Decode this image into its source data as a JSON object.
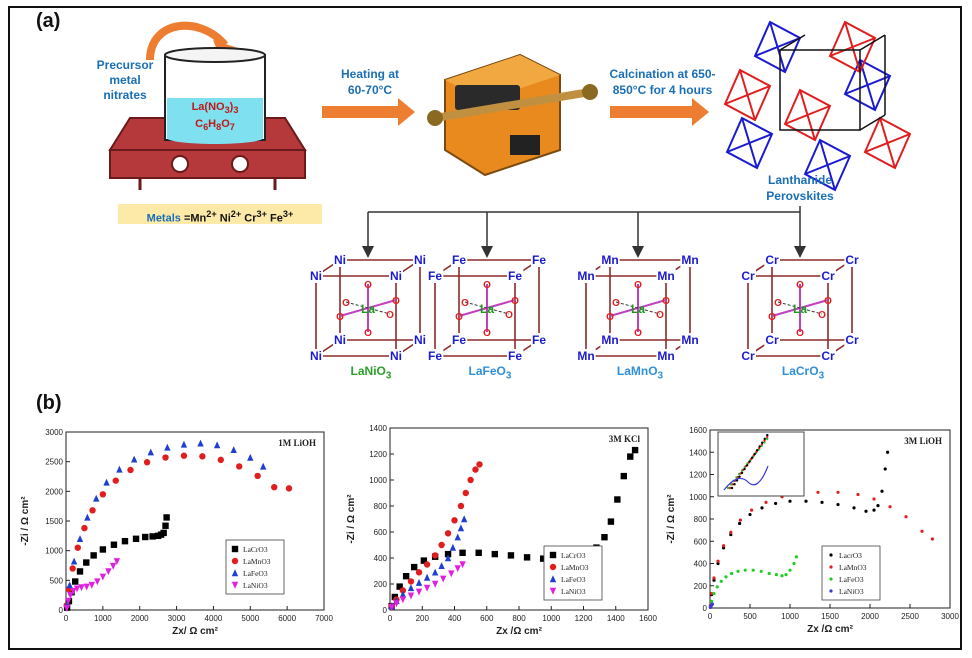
{
  "panel_a": {
    "letter": "(a)",
    "precursor_label": [
      "Precursor",
      "metal",
      "nitrates"
    ],
    "beaker_formula_1": "La(NO3)3",
    "beaker_formula_2": "C6H8O7",
    "metals_label": "Metals =Mn2+ Ni2+ Cr3+ Fe3+",
    "heating_label": [
      "Heating at",
      "60-70°C"
    ],
    "calcination_label": [
      "Calcination at 650-",
      "850°C for 4 hours"
    ],
    "perovskite_label": [
      "Lanthanide",
      "Perovskites"
    ],
    "compounds": [
      {
        "metal": "Ni",
        "name": "LaNiO3",
        "color": "#1a1ad0"
      },
      {
        "metal": "Fe",
        "name": "LaFeO3",
        "color": "#1a1ad0"
      },
      {
        "metal": "Mn",
        "name": "LaMnO3",
        "color": "#1a1ad0"
      },
      {
        "metal": "Cr",
        "name": "LaCrO3",
        "color": "#1a1ad0"
      }
    ],
    "colors": {
      "accent_blue": "#1a6fb5",
      "arrow_orange": "#ed7d31",
      "name_green": "#2ca02c",
      "name_blue": "#2f8fd8",
      "la_green": "#1a9a1a",
      "oxygen_red": "#e02020",
      "cube_edge": "#8b2a2a"
    }
  },
  "panel_b": {
    "letter": "(b)"
  },
  "chart_data": [
    {
      "type": "scatter",
      "title": "1M LiOH",
      "xlabel": "Zx/ Ω cm²",
      "ylabel": "-Zi / Ω cm²",
      "xlim": [
        0,
        7000
      ],
      "ylim": [
        0,
        3000
      ],
      "xticks": [
        0,
        1000,
        2000,
        3000,
        4000,
        5000,
        6000,
        7000
      ],
      "yticks": [
        0,
        500,
        1000,
        1500,
        2000,
        2500,
        3000
      ],
      "legend_position": "bottom-right",
      "series": [
        {
          "name": "LaCrO3",
          "color": "#000000",
          "marker": "square",
          "x": [
            30,
            80,
            150,
            250,
            380,
            550,
            750,
            1000,
            1300,
            1600,
            1900,
            2150,
            2350,
            2500,
            2580,
            2650,
            2700,
            2730
          ],
          "y": [
            40,
            150,
            300,
            480,
            650,
            800,
            920,
            1020,
            1100,
            1160,
            1200,
            1230,
            1240,
            1250,
            1270,
            1300,
            1420,
            1560
          ]
        },
        {
          "name": "LaMnO3",
          "color": "#e01e1e",
          "marker": "circle",
          "x": [
            20,
            80,
            180,
            320,
            500,
            720,
            1000,
            1350,
            1750,
            2200,
            2700,
            3200,
            3700,
            4200,
            4700,
            5200,
            5650,
            6050
          ],
          "y": [
            80,
            350,
            700,
            1050,
            1380,
            1680,
            1950,
            2180,
            2360,
            2490,
            2570,
            2600,
            2590,
            2530,
            2420,
            2260,
            2070,
            2050
          ]
        },
        {
          "name": "LaFeO3",
          "color": "#1f3fd0",
          "marker": "triangle",
          "x": [
            30,
            100,
            220,
            380,
            580,
            820,
            1100,
            1450,
            1850,
            2300,
            2750,
            3200,
            3650,
            4100,
            4550,
            5000,
            5350
          ],
          "y": [
            100,
            420,
            820,
            1200,
            1560,
            1880,
            2150,
            2370,
            2540,
            2660,
            2740,
            2790,
            2810,
            2780,
            2700,
            2570,
            2420
          ]
        },
        {
          "name": "LaNiO3",
          "color": "#e020e0",
          "marker": "inverted-triangle",
          "x": [
            20,
            60,
            120,
            200,
            300,
            420,
            560,
            700,
            850,
            1000,
            1150,
            1280,
            1380
          ],
          "y": [
            30,
            150,
            250,
            320,
            360,
            380,
            390,
            420,
            480,
            560,
            650,
            740,
            820
          ]
        }
      ]
    },
    {
      "type": "scatter",
      "title": "3M KCl",
      "xlabel": "Zx /Ω cm²",
      "ylabel": "-Zi / Ω cm²",
      "xlim": [
        0,
        1600
      ],
      "ylim": [
        0,
        1400
      ],
      "xticks": [
        0,
        200,
        400,
        600,
        800,
        1000,
        1200,
        1400,
        1600
      ],
      "yticks": [
        0,
        200,
        400,
        600,
        800,
        1000,
        1200,
        1400
      ],
      "legend_position": "bottom-right",
      "series": [
        {
          "name": "LaCrO3",
          "color": "#000000",
          "marker": "square",
          "x": [
            10,
            30,
            60,
            100,
            150,
            210,
            280,
            360,
            450,
            550,
            650,
            750,
            850,
            950,
            1050,
            1150,
            1220,
            1280,
            1330,
            1370,
            1410,
            1450,
            1490,
            1520
          ],
          "y": [
            30,
            100,
            180,
            260,
            330,
            380,
            410,
            430,
            440,
            440,
            430,
            420,
            405,
            395,
            390,
            400,
            430,
            480,
            560,
            680,
            850,
            1030,
            1180,
            1230
          ]
        },
        {
          "name": "LaMnO3",
          "color": "#e01e1e",
          "marker": "circle",
          "x": [
            10,
            40,
            80,
            130,
            180,
            230,
            280,
            320,
            360,
            400,
            440,
            470,
            500,
            530,
            555
          ],
          "y": [
            30,
            80,
            150,
            220,
            290,
            350,
            420,
            500,
            590,
            690,
            800,
            900,
            1000,
            1080,
            1120
          ]
        },
        {
          "name": "LaFeO3",
          "color": "#1f3fd0",
          "marker": "triangle",
          "x": [
            10,
            40,
            80,
            130,
            180,
            230,
            280,
            320,
            360,
            390,
            420,
            440,
            460
          ],
          "y": [
            30,
            70,
            120,
            170,
            210,
            250,
            290,
            340,
            400,
            480,
            560,
            630,
            700
          ]
        },
        {
          "name": "LaNiO3",
          "color": "#e020e0",
          "marker": "inverted-triangle",
          "x": [
            10,
            40,
            80,
            130,
            180,
            230,
            280,
            330,
            380,
            420,
            450
          ],
          "y": [
            20,
            50,
            80,
            110,
            140,
            170,
            200,
            240,
            280,
            320,
            350
          ]
        }
      ]
    },
    {
      "type": "scatter",
      "title": "3M LiOH",
      "xlabel": "Zx /Ω cm²",
      "ylabel": "-Zi / Ω cm²",
      "xlim": [
        0,
        3000
      ],
      "ylim": [
        0,
        1600
      ],
      "xticks": [
        0,
        500,
        1000,
        1500,
        2000,
        2500,
        3000
      ],
      "yticks": [
        0,
        200,
        400,
        600,
        800,
        1000,
        1200,
        1400,
        1600
      ],
      "legend_position": "bottom-right",
      "inset": true,
      "series": [
        {
          "name": "LacrO3",
          "color": "#000000",
          "marker": "dot",
          "x": [
            5,
            20,
            50,
            100,
            170,
            260,
            370,
            500,
            650,
            820,
            1000,
            1200,
            1400,
            1600,
            1800,
            1950,
            2050,
            2100,
            2150,
            2190,
            2220
          ],
          "y": [
            20,
            120,
            250,
            400,
            540,
            660,
            760,
            840,
            900,
            940,
            960,
            960,
            950,
            930,
            900,
            870,
            880,
            920,
            1050,
            1250,
            1400
          ]
        },
        {
          "name": "LaMnO3",
          "color": "#e01e1e",
          "marker": "dot",
          "x": [
            5,
            20,
            50,
            100,
            170,
            260,
            380,
            520,
            700,
            900,
            1100,
            1350,
            1600,
            1850,
            2050,
            2250,
            2450,
            2650,
            2780
          ],
          "y": [
            20,
            130,
            270,
            420,
            560,
            680,
            790,
            880,
            950,
            1000,
            1030,
            1040,
            1040,
            1020,
            980,
            910,
            820,
            690,
            620
          ]
        },
        {
          "name": "LaFeO3",
          "color": "#22cc22",
          "marker": "dot",
          "x": [
            5,
            20,
            50,
            90,
            140,
            200,
            270,
            350,
            440,
            540,
            640,
            740,
            830,
            900,
            950,
            1000,
            1050,
            1080
          ],
          "y": [
            10,
            60,
            130,
            190,
            240,
            280,
            310,
            330,
            340,
            340,
            330,
            310,
            300,
            290,
            300,
            340,
            400,
            460
          ]
        },
        {
          "name": "LaNiO3",
          "color": "#3a3ad8",
          "marker": "dot",
          "x": [
            5,
            10,
            20,
            30
          ],
          "y": [
            5,
            15,
            25,
            35
          ]
        }
      ]
    }
  ]
}
